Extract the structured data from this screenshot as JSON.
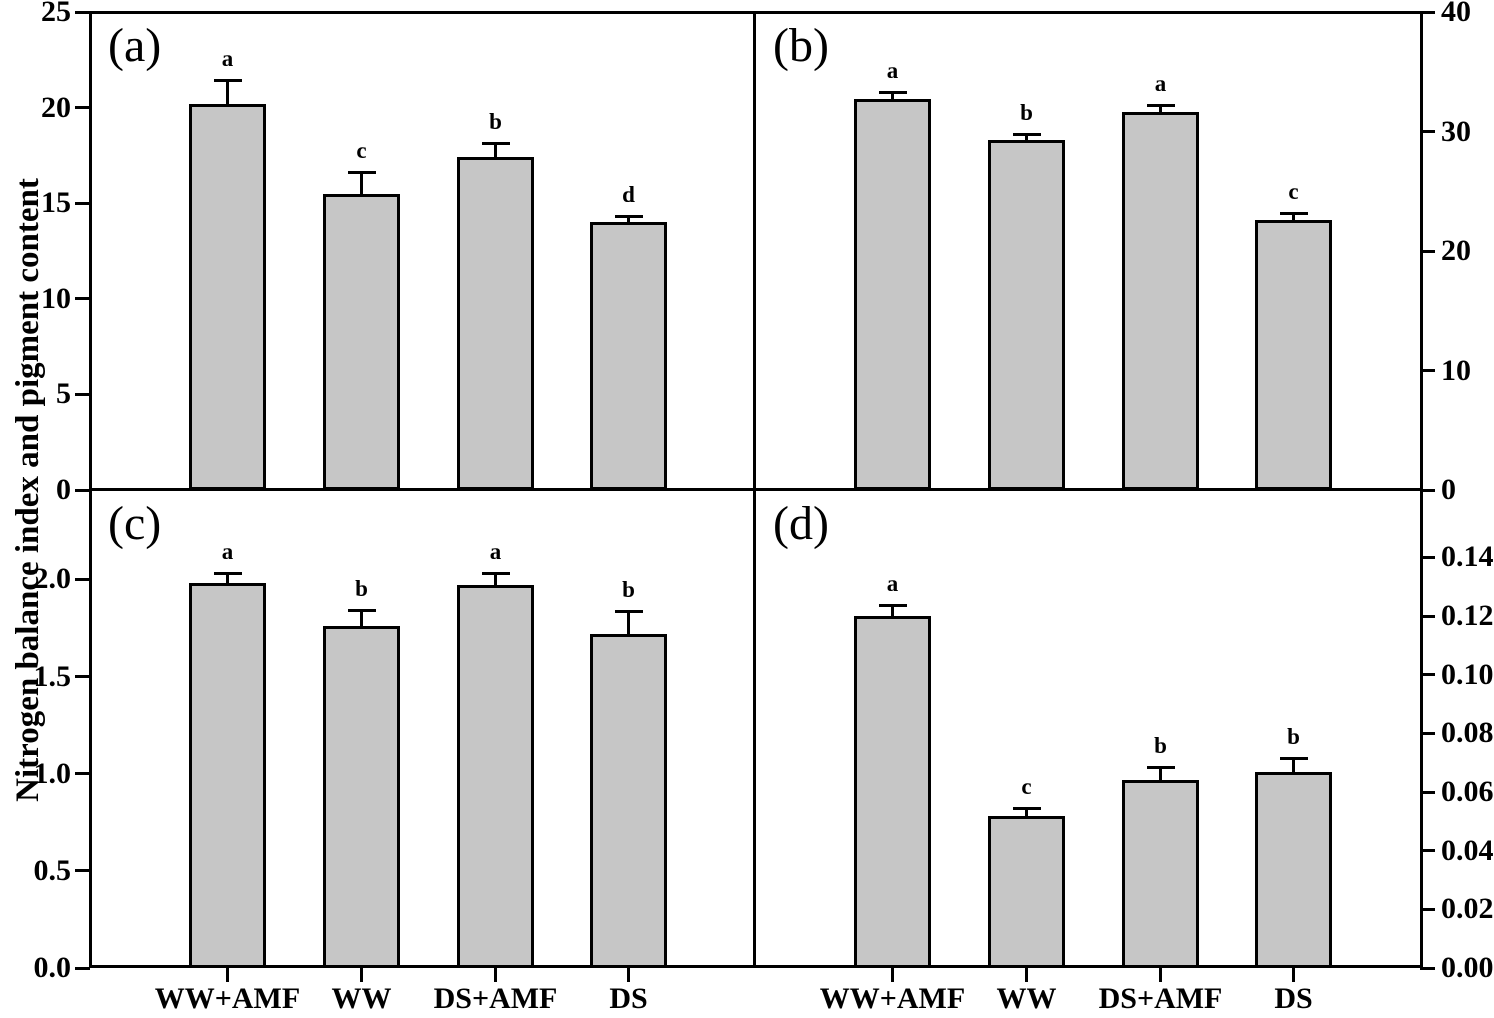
{
  "figure": {
    "y_axis_title": "Nitrogen balance index and pigment content"
  },
  "style": {
    "bar_fill": "#c6c6c6",
    "line_color": "#000000",
    "background": "#ffffff"
  },
  "chart_data": [
    {
      "panel": "a",
      "panel_label": "(a)",
      "type": "bar",
      "axis_side": "left",
      "ylim": [
        0,
        25
      ],
      "yticks": [
        {
          "v": 0,
          "label": "0"
        },
        {
          "v": 5,
          "label": "5"
        },
        {
          "v": 10,
          "label": "10"
        },
        {
          "v": 15,
          "label": "15"
        },
        {
          "v": 20,
          "label": "20"
        },
        {
          "v": 25,
          "label": "25"
        }
      ],
      "categories": [
        "WW+AMF",
        "WW",
        "DS+AMF",
        "DS"
      ],
      "values": [
        20.2,
        15.5,
        17.4,
        14.0
      ],
      "errors": [
        1.3,
        1.2,
        0.8,
        0.4
      ],
      "sig_letters": [
        "a",
        "c",
        "b",
        "d"
      ]
    },
    {
      "panel": "b",
      "panel_label": "(b)",
      "type": "bar",
      "axis_side": "right",
      "ylim": [
        0,
        40
      ],
      "yticks": [
        {
          "v": 0,
          "label": "0"
        },
        {
          "v": 10,
          "label": "10"
        },
        {
          "v": 20,
          "label": "20"
        },
        {
          "v": 30,
          "label": "30"
        },
        {
          "v": 40,
          "label": "40"
        }
      ],
      "categories": [
        "WW+AMF",
        "WW",
        "DS+AMF",
        "DS"
      ],
      "values": [
        32.7,
        29.3,
        31.6,
        22.6
      ],
      "errors": [
        0.7,
        0.6,
        0.7,
        0.7
      ],
      "sig_letters": [
        "a",
        "b",
        "a",
        "c"
      ]
    },
    {
      "panel": "c",
      "panel_label": "(c)",
      "type": "bar",
      "axis_side": "left",
      "ylim": [
        0,
        2.46
      ],
      "yticks": [
        {
          "v": 0.0,
          "label": "0.0"
        },
        {
          "v": 0.5,
          "label": "0.5"
        },
        {
          "v": 1.0,
          "label": "1.0"
        },
        {
          "v": 1.5,
          "label": "1.5"
        },
        {
          "v": 2.0,
          "label": "2.0"
        }
      ],
      "categories": [
        "WW+AMF",
        "WW",
        "DS+AMF",
        "DS"
      ],
      "values": [
        1.98,
        1.76,
        1.97,
        1.72
      ],
      "errors": [
        0.06,
        0.09,
        0.07,
        0.12
      ],
      "sig_letters": [
        "a",
        "b",
        "a",
        "b"
      ]
    },
    {
      "panel": "d",
      "panel_label": "(d)",
      "type": "bar",
      "axis_side": "right",
      "ylim": [
        0,
        0.163
      ],
      "yticks": [
        {
          "v": 0.0,
          "label": "0.00"
        },
        {
          "v": 0.02,
          "label": "0.02"
        },
        {
          "v": 0.04,
          "label": "0.04"
        },
        {
          "v": 0.06,
          "label": "0.06"
        },
        {
          "v": 0.08,
          "label": "0.08"
        },
        {
          "v": 0.1,
          "label": "0.10"
        },
        {
          "v": 0.12,
          "label": "0.12"
        },
        {
          "v": 0.14,
          "label": "0.14"
        }
      ],
      "categories": [
        "WW+AMF",
        "WW",
        "DS+AMF",
        "DS"
      ],
      "values": [
        0.12,
        0.052,
        0.064,
        0.067
      ],
      "errors": [
        0.004,
        0.003,
        0.005,
        0.005
      ],
      "sig_letters": [
        "a",
        "c",
        "b",
        "b"
      ]
    }
  ]
}
